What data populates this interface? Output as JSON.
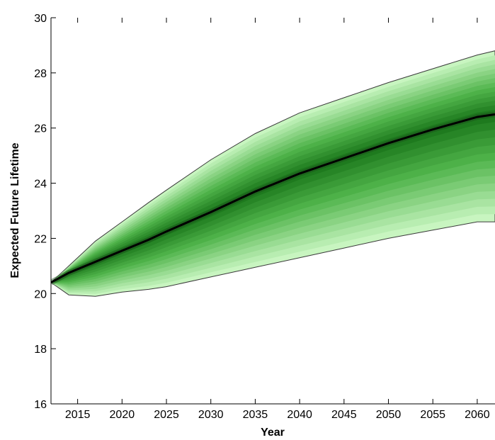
{
  "chart_data": {
    "type": "area",
    "title": "",
    "xlabel": "Year",
    "ylabel": "Expected Future Lifetime",
    "xlim": [
      2012,
      2062
    ],
    "ylim": [
      16,
      30
    ],
    "xticks": [
      2015,
      2020,
      2025,
      2030,
      2035,
      2040,
      2045,
      2050,
      2055,
      2060
    ],
    "yticks": [
      16,
      18,
      20,
      22,
      24,
      26,
      28,
      30
    ],
    "grid": false,
    "legend": "none",
    "colors": {
      "outer_band": "#c8f5c0",
      "inner_band": "#4fb34a",
      "core_band": "#1e7a1e",
      "median_line": "#000000"
    },
    "years": [
      2012,
      2014,
      2017,
      2020,
      2023,
      2025,
      2030,
      2035,
      2040,
      2045,
      2050,
      2055,
      2060,
      2062
    ],
    "median": [
      20.4,
      20.75,
      21.15,
      21.55,
      21.95,
      22.25,
      22.95,
      23.7,
      24.35,
      24.9,
      25.45,
      25.95,
      26.4,
      26.5
    ],
    "upper": [
      20.4,
      21.0,
      21.9,
      22.6,
      23.3,
      23.75,
      24.85,
      25.8,
      26.55,
      27.1,
      27.65,
      28.15,
      28.65,
      28.8
    ],
    "lower": [
      20.4,
      19.95,
      19.9,
      20.05,
      20.15,
      20.25,
      20.6,
      20.95,
      21.3,
      21.65,
      22.0,
      22.3,
      22.6,
      22.6
    ]
  }
}
